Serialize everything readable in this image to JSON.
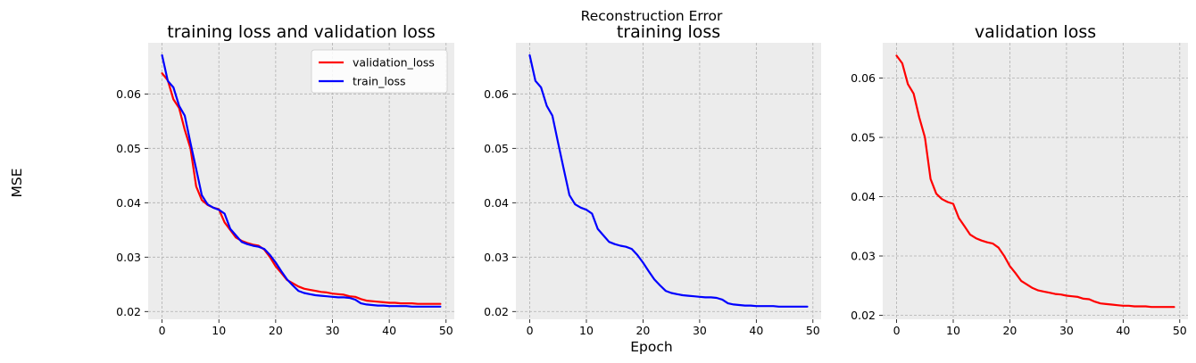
{
  "figure": {
    "suptitle": "Reconstruction Error",
    "supxlabel": "Epoch",
    "supylabel": "MSE"
  },
  "colors": {
    "validation": "#ff0000",
    "train": "#0000ff",
    "axes_bg": "#ececec",
    "grid": "#b0b0b0"
  },
  "chart_data": [
    {
      "type": "line",
      "title": "training loss and validation loss",
      "xlim": [
        -2.45,
        51.45
      ],
      "ylim": [
        0.01857,
        0.0694
      ],
      "xticks": [
        0,
        10,
        20,
        30,
        40,
        50
      ],
      "yticks": [
        0.02,
        0.03,
        0.04,
        0.05,
        0.06
      ],
      "grid": true,
      "legend": "top-right",
      "series": [
        {
          "name": "validation_loss",
          "color": "#ff0000",
          "values": [
            0.0638,
            0.0625,
            0.059,
            0.0574,
            0.0534,
            0.05,
            0.043,
            0.0405,
            0.0396,
            0.0391,
            0.0388,
            0.0364,
            0.035,
            0.0336,
            0.033,
            0.0326,
            0.0323,
            0.0321,
            0.0314,
            0.03,
            0.0283,
            0.0271,
            0.0258,
            0.0252,
            0.0246,
            0.0242,
            0.024,
            0.0238,
            0.0236,
            0.0235,
            0.0233,
            0.0232,
            0.0231,
            0.0228,
            0.0227,
            0.0223,
            0.022,
            0.0219,
            0.0218,
            0.0217,
            0.0216,
            0.0216,
            0.0215,
            0.0215,
            0.0215,
            0.0214,
            0.0214,
            0.0214,
            0.0214,
            0.0214
          ]
        },
        {
          "name": "train_loss",
          "color": "#0000ff",
          "values": [
            0.0671,
            0.0624,
            0.0612,
            0.0578,
            0.056,
            0.051,
            0.0462,
            0.0414,
            0.0397,
            0.0391,
            0.0387,
            0.038,
            0.0352,
            0.034,
            0.0328,
            0.0324,
            0.0321,
            0.0319,
            0.0315,
            0.0304,
            0.029,
            0.0274,
            0.0259,
            0.0248,
            0.0238,
            0.0234,
            0.0232,
            0.023,
            0.0229,
            0.0228,
            0.0227,
            0.0226,
            0.0226,
            0.0225,
            0.0222,
            0.0215,
            0.0213,
            0.0212,
            0.0211,
            0.0211,
            0.021,
            0.021,
            0.021,
            0.021,
            0.0209,
            0.0209,
            0.0209,
            0.0209,
            0.0209,
            0.0209
          ]
        }
      ]
    },
    {
      "type": "line",
      "title": "training loss",
      "xlim": [
        -2.45,
        51.45
      ],
      "ylim": [
        0.01857,
        0.0694
      ],
      "xticks": [
        0,
        10,
        20,
        30,
        40,
        50
      ],
      "yticks": [
        0.02,
        0.03,
        0.04,
        0.05,
        0.06
      ],
      "grid": true,
      "series": [
        {
          "color": "#0000ff",
          "values": [
            0.0671,
            0.0624,
            0.0612,
            0.0578,
            0.056,
            0.051,
            0.0462,
            0.0414,
            0.0397,
            0.0391,
            0.0387,
            0.038,
            0.0352,
            0.034,
            0.0328,
            0.0324,
            0.0321,
            0.0319,
            0.0315,
            0.0304,
            0.029,
            0.0274,
            0.0259,
            0.0248,
            0.0238,
            0.0234,
            0.0232,
            0.023,
            0.0229,
            0.0228,
            0.0227,
            0.0226,
            0.0226,
            0.0225,
            0.0222,
            0.0215,
            0.0213,
            0.0212,
            0.0211,
            0.0211,
            0.021,
            0.021,
            0.021,
            0.021,
            0.0209,
            0.0209,
            0.0209,
            0.0209,
            0.0209,
            0.0209
          ]
        }
      ]
    },
    {
      "type": "line",
      "title": "validation loss",
      "xlim": [
        -2.45,
        51.45
      ],
      "ylim": [
        0.01932,
        0.06596
      ],
      "xticks": [
        0,
        10,
        20,
        30,
        40,
        50
      ],
      "yticks": [
        0.02,
        0.03,
        0.04,
        0.05,
        0.06
      ],
      "grid": true,
      "series": [
        {
          "color": "#ff0000",
          "values": [
            0.0638,
            0.0625,
            0.059,
            0.0574,
            0.0534,
            0.05,
            0.043,
            0.0405,
            0.0396,
            0.0391,
            0.0388,
            0.0364,
            0.035,
            0.0336,
            0.033,
            0.0326,
            0.0323,
            0.0321,
            0.0314,
            0.03,
            0.0283,
            0.0271,
            0.0258,
            0.0252,
            0.0246,
            0.0242,
            0.024,
            0.0238,
            0.0236,
            0.0235,
            0.0233,
            0.0232,
            0.0231,
            0.0228,
            0.0227,
            0.0223,
            0.022,
            0.0219,
            0.0218,
            0.0217,
            0.0216,
            0.0216,
            0.0215,
            0.0215,
            0.0215,
            0.0214,
            0.0214,
            0.0214,
            0.0214,
            0.0214
          ]
        }
      ]
    }
  ]
}
